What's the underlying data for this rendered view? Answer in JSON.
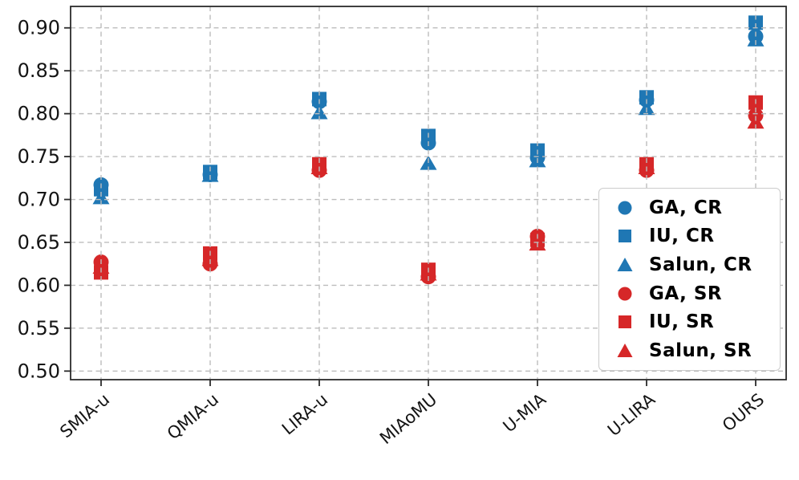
{
  "figure": {
    "background": "#ffffff",
    "accent_blue": "#1f77b4",
    "accent_red": "#d62728",
    "grid_color": "#bdbdbd",
    "spine_color": "#2b2b2b",
    "tick_label_color": "#141414"
  },
  "chart_data": {
    "type": "scatter",
    "title": "",
    "xlabel": "",
    "ylabel": "",
    "categories": [
      "SMIA-u",
      "QMIA-u",
      "LIRA-u",
      "MIAoMU",
      "U-MIA",
      "U-LIRA",
      "OURS"
    ],
    "series": [
      {
        "name": "GA, CR",
        "marker": "circle",
        "color": "#1f77b4",
        "values": [
          0.717,
          0.729,
          0.814,
          0.766,
          0.749,
          0.816,
          0.89
        ]
      },
      {
        "name": "IU, CR",
        "marker": "square",
        "color": "#1f77b4",
        "values": [
          0.712,
          0.732,
          0.817,
          0.774,
          0.757,
          0.819,
          0.906
        ]
      },
      {
        "name": "Salun, CR",
        "marker": "triangle",
        "color": "#1f77b4",
        "values": [
          0.702,
          0.728,
          0.801,
          0.742,
          0.745,
          0.806,
          0.886
        ]
      },
      {
        "name": "GA, SR",
        "marker": "circle",
        "color": "#d62728",
        "values": [
          0.627,
          0.625,
          0.734,
          0.61,
          0.657,
          0.734,
          0.798
        ]
      },
      {
        "name": "IU, SR",
        "marker": "square",
        "color": "#d62728",
        "values": [
          0.615,
          0.637,
          0.741,
          0.618,
          0.653,
          0.741,
          0.813
        ]
      },
      {
        "name": "Salun, SR",
        "marker": "triangle",
        "color": "#d62728",
        "values": [
          0.621,
          0.63,
          0.737,
          0.613,
          0.648,
          0.737,
          0.79
        ]
      }
    ],
    "yticks": [
      "0.50",
      "0.55",
      "0.60",
      "0.65",
      "0.70",
      "0.75",
      "0.80",
      "0.85",
      "0.90"
    ],
    "ylim": [
      0.49,
      0.925
    ],
    "grid": true,
    "grid_style": "dashed",
    "grid_above_points": true,
    "legend_position": "lower right",
    "x_tick_rotation_deg": 40
  }
}
